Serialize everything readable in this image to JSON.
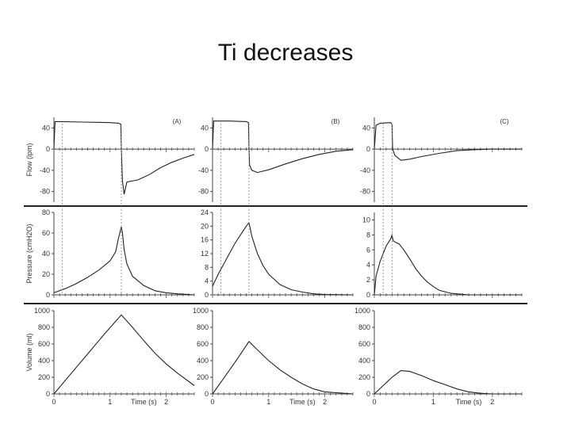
{
  "slide": {
    "title": "Ti decreases"
  },
  "chart_data": {
    "type": "line",
    "title": "Ti decreases",
    "columns": [
      "(A)",
      "(B)",
      "(C)"
    ],
    "ti_seconds": [
      1.2,
      0.65,
      0.3
    ],
    "rows": [
      {
        "ylabel": "Flow (lpm)",
        "ylim": [
          -100,
          60
        ],
        "ticks": [
          "40",
          "0",
          "-40",
          "-80"
        ],
        "tick_values": [
          40,
          0,
          -40,
          -80
        ],
        "series": [
          {
            "x": [
              0,
              0.02,
              0.1,
              0.5,
              1.0,
              1.15,
              1.19,
              1.2,
              1.22,
              1.25,
              1.3,
              1.5,
              1.7,
              1.9,
              2.1,
              2.3,
              2.5
            ],
            "y": [
              0,
              52,
              52,
              51,
              50,
              49,
              47,
              0,
              -60,
              -85,
              -62,
              -58,
              -48,
              -35,
              -25,
              -17,
              -10
            ]
          },
          {
            "x": [
              0,
              0.02,
              0.1,
              0.3,
              0.6,
              0.64,
              0.65,
              0.66,
              0.7,
              0.8,
              1.0,
              1.3,
              1.6,
              1.9,
              2.2,
              2.5
            ],
            "y": [
              0,
              53,
              53,
              53,
              52,
              50,
              0,
              -30,
              -40,
              -44,
              -39,
              -28,
              -18,
              -10,
              -4,
              -1
            ]
          },
          {
            "x": [
              0,
              0.03,
              0.1,
              0.28,
              0.3,
              0.31,
              0.35,
              0.45,
              0.6,
              0.8,
              1.1,
              1.4,
              1.7,
              2.0,
              2.5
            ],
            "y": [
              0,
              45,
              49,
              50,
              47,
              0,
              -12,
              -21,
              -19,
              -14,
              -8,
              -3,
              -1,
              0,
              0
            ]
          }
        ]
      },
      {
        "ylabel": "Pressure (cmH2O)",
        "ylims": [
          [
            0,
            80
          ],
          [
            0,
            24
          ],
          [
            0,
            11
          ]
        ],
        "ticks_per_chart": [
          [
            "80",
            "60",
            "40",
            "20",
            "0"
          ],
          [
            "24",
            "20",
            "16",
            "12",
            "8",
            "4",
            "0"
          ],
          [
            "10",
            "8",
            "6",
            "4",
            "2",
            "0"
          ]
        ],
        "tick_values_per_chart": [
          [
            80,
            60,
            40,
            20,
            0
          ],
          [
            24,
            20,
            16,
            12,
            8,
            4,
            0
          ],
          [
            10,
            8,
            6,
            4,
            2,
            0
          ]
        ],
        "series": [
          {
            "x": [
              0,
              0.2,
              0.4,
              0.6,
              0.8,
              1.0,
              1.1,
              1.15,
              1.2,
              1.22,
              1.25,
              1.3,
              1.4,
              1.6,
              1.8,
              2.0,
              2.2,
              2.5
            ],
            "y": [
              2,
              6,
              11,
              17,
              24,
              33,
              42,
              55,
              66,
              60,
              44,
              30,
              18,
              9,
              4,
              2,
              1,
              0
            ]
          },
          {
            "x": [
              0,
              0.1,
              0.2,
              0.3,
              0.4,
              0.5,
              0.6,
              0.65,
              0.7,
              0.8,
              0.9,
              1.0,
              1.2,
              1.4,
              1.6,
              1.8,
              2.0,
              2.5
            ],
            "y": [
              2.5,
              6,
              9,
              12,
              15,
              17.5,
              20,
              21,
              17,
              12,
              8.5,
              6,
              3,
              1.5,
              0.8,
              0.3,
              0.1,
              0
            ]
          },
          {
            "x": [
              0,
              0.03,
              0.1,
              0.2,
              0.28,
              0.3,
              0.32,
              0.36,
              0.42,
              0.5,
              0.6,
              0.7,
              0.8,
              0.9,
              1.0,
              1.1,
              1.3,
              1.6,
              2.0,
              2.5
            ],
            "y": [
              0,
              2.5,
              4.5,
              6.5,
              7.5,
              8,
              7.2,
              7,
              6.8,
              6,
              4.8,
              3.5,
              2.5,
              1.7,
              1.1,
              0.6,
              0.2,
              0,
              0,
              0
            ]
          }
        ]
      },
      {
        "ylabel": "Volume (ml)",
        "ylim": [
          0,
          1000
        ],
        "ticks": [
          "1000",
          "800",
          "600",
          "400",
          "200",
          "0"
        ],
        "tick_values": [
          1000,
          800,
          600,
          400,
          200,
          0
        ],
        "series": [
          {
            "x": [
              0,
              0.3,
              0.6,
              0.9,
              1.2,
              1.4,
              1.6,
              1.8,
              2.0,
              2.2,
              2.5
            ],
            "y": [
              0,
              240,
              480,
              720,
              950,
              800,
              640,
              490,
              360,
              250,
              100
            ]
          },
          {
            "x": [
              0,
              0.2,
              0.4,
              0.65,
              0.8,
              1.0,
              1.2,
              1.4,
              1.6,
              1.8,
              2.0,
              2.5
            ],
            "y": [
              0,
              190,
              380,
              630,
              530,
              400,
              290,
              200,
              120,
              60,
              25,
              0
            ]
          },
          {
            "x": [
              0,
              0.15,
              0.3,
              0.45,
              0.6,
              0.8,
              1.0,
              1.2,
              1.4,
              1.6,
              1.8,
              2.0,
              2.5
            ],
            "y": [
              0,
              100,
              200,
              280,
              270,
              220,
              160,
              110,
              60,
              25,
              8,
              0,
              0
            ]
          }
        ]
      }
    ],
    "xlim": [
      0,
      2.5
    ],
    "xticks": [
      "0",
      "1",
      "2"
    ],
    "xtick_values": [
      0,
      1,
      2
    ],
    "xlabel": "Time (s)"
  }
}
